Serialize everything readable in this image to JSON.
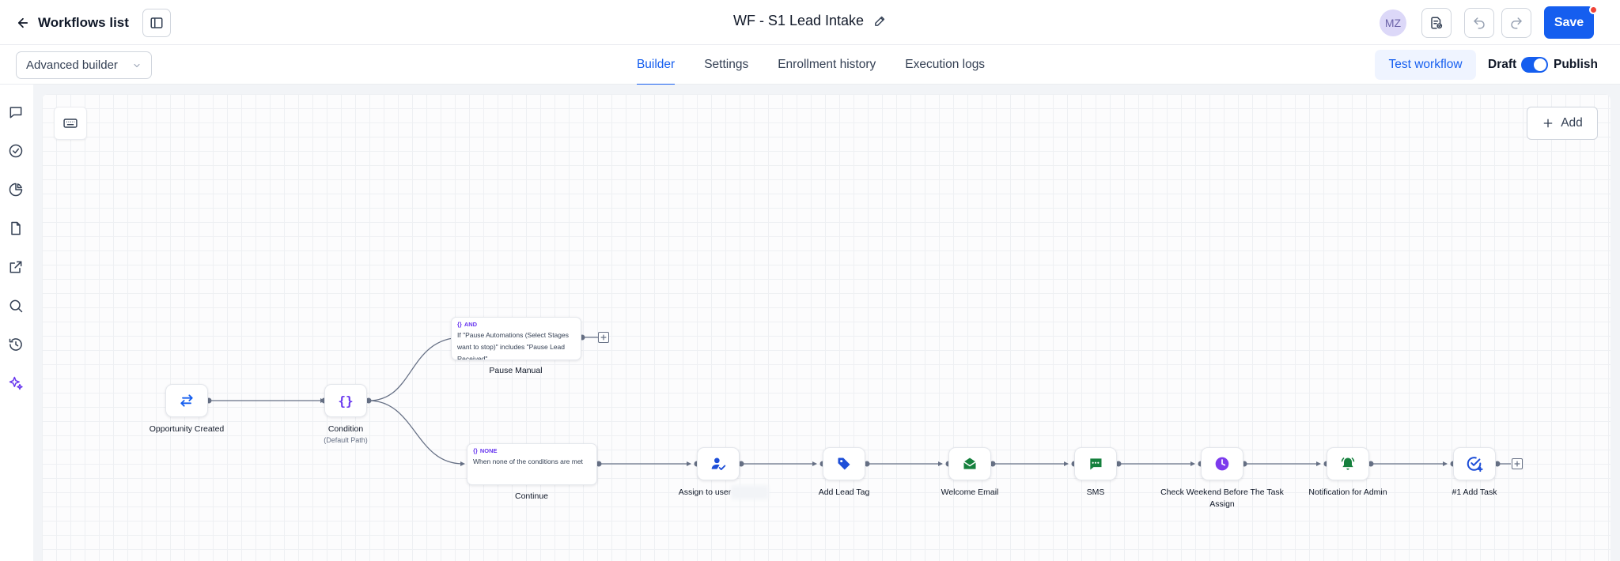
{
  "header": {
    "back_label": "Workflows list",
    "workflow_title": "WF - S1 Lead Intake",
    "avatar_initials": "MZ",
    "save_label": "Save"
  },
  "subbar": {
    "builder_mode": "Advanced builder",
    "tabs": [
      {
        "label": "Builder",
        "active": true
      },
      {
        "label": "Settings",
        "active": false
      },
      {
        "label": "Enrollment history",
        "active": false
      },
      {
        "label": "Execution logs",
        "active": false
      }
    ],
    "test_label": "Test workflow",
    "draft_label": "Draft",
    "publish_label": "Publish",
    "publish_toggle_on": true
  },
  "canvas": {
    "add_label": "Add"
  },
  "nodes": {
    "trigger": {
      "label": "Opportunity Created",
      "icon": "swap-arrows-icon"
    },
    "condition": {
      "label": "Condition",
      "sublabel": "(Default Path)",
      "icon": "curly-braces-icon"
    },
    "branch_and": {
      "tag": "AND",
      "text": "If \"Pause Automations (Select Stages want to stop)\" includes \"Pause Lead Received\"",
      "label": "Pause Manual"
    },
    "branch_none": {
      "tag": "NONE",
      "text": "When none of the conditions are met",
      "label": "Continue"
    },
    "actions": [
      {
        "label": "Assign to user",
        "icon": "assign-user-icon",
        "color": "#1d4ed8"
      },
      {
        "label": "Add Lead Tag",
        "icon": "tag-icon",
        "color": "#1d4ed8"
      },
      {
        "label": "Welcome Email",
        "icon": "email-icon",
        "color": "#15803d"
      },
      {
        "label": "SMS",
        "icon": "sms-icon",
        "color": "#15803d"
      },
      {
        "label": "Check Weekend Before The Task Assign",
        "icon": "clock-icon",
        "color": "#7c3aed"
      },
      {
        "label": "Notification for Admin",
        "icon": "bell-icon",
        "color": "#15803d"
      },
      {
        "label": "#1 Add Task",
        "icon": "task-check-icon",
        "color": "#1d4ed8"
      }
    ]
  },
  "colors": {
    "accent": "#155eef",
    "condition_purple": "#6938ef"
  }
}
